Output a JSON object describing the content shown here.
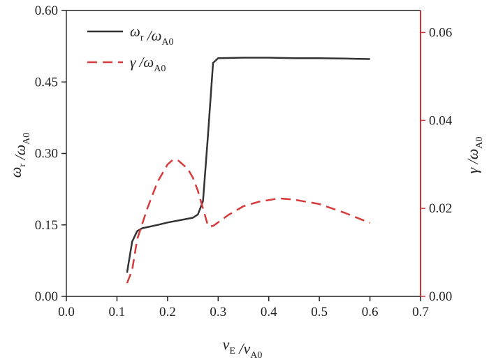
{
  "chart_data": {
    "type": "line",
    "xlabel": {
      "main": "v",
      "main_sub": "E",
      "sep": "/",
      "den": "v",
      "den_sub": "A0"
    },
    "ylabel_left": {
      "main": "ω",
      "main_sub": "r",
      "sep": "/",
      "den": "ω",
      "den_sub": "A0"
    },
    "ylabel_right": {
      "main": "γ",
      "main_sub": "",
      "sep": "/",
      "den": "ω",
      "den_sub": "A0"
    },
    "xlim": [
      0,
      0.7
    ],
    "ylim_left": [
      0,
      0.6
    ],
    "ylim_right": [
      0,
      0.065
    ],
    "x_ticks": [
      "0.0",
      "0.1",
      "0.2",
      "0.3",
      "0.4",
      "0.5",
      "0.6",
      "0.7"
    ],
    "y_left_ticks": [
      "0.00",
      "0.15",
      "0.30",
      "0.45",
      "0.60"
    ],
    "y_right_ticks": [
      "0.00",
      "0.02",
      "0.04",
      "0.06"
    ],
    "grid": false,
    "legend_position": "top-left",
    "colors": {
      "left_axis": "#333333",
      "right_axis": "#cc3333",
      "omega_series": "#333333",
      "gamma_series": "#d63a3a"
    },
    "series": [
      {
        "key": "omega",
        "name": {
          "main": "ω",
          "main_sub": "r",
          "sep": "/",
          "den": "ω",
          "den_sub": "A0"
        },
        "axis": "left",
        "style": "solid",
        "x": [
          0.12,
          0.13,
          0.14,
          0.15,
          0.18,
          0.2,
          0.22,
          0.25,
          0.26,
          0.27,
          0.28,
          0.29,
          0.3,
          0.35,
          0.4,
          0.45,
          0.5,
          0.55,
          0.6
        ],
        "y": [
          0.05,
          0.115,
          0.137,
          0.143,
          0.15,
          0.155,
          0.159,
          0.165,
          0.172,
          0.2,
          0.34,
          0.49,
          0.5,
          0.501,
          0.501,
          0.5,
          0.5,
          0.499,
          0.498
        ]
      },
      {
        "key": "gamma",
        "name": {
          "main": "γ",
          "main_sub": "",
          "sep": "/",
          "den": "ω",
          "den_sub": "A0"
        },
        "axis": "right",
        "style": "dashed",
        "x": [
          0.12,
          0.13,
          0.14,
          0.16,
          0.18,
          0.2,
          0.21,
          0.22,
          0.24,
          0.25,
          0.26,
          0.265,
          0.27,
          0.275,
          0.28,
          0.29,
          0.32,
          0.35,
          0.38,
          0.42,
          0.45,
          0.5,
          0.55,
          0.6
        ],
        "y": [
          0.003,
          0.006,
          0.013,
          0.02,
          0.026,
          0.03,
          0.031,
          0.031,
          0.029,
          0.027,
          0.024,
          0.022,
          0.02,
          0.018,
          0.016,
          0.016,
          0.0185,
          0.0205,
          0.0215,
          0.0223,
          0.022,
          0.021,
          0.019,
          0.0167
        ]
      }
    ]
  }
}
